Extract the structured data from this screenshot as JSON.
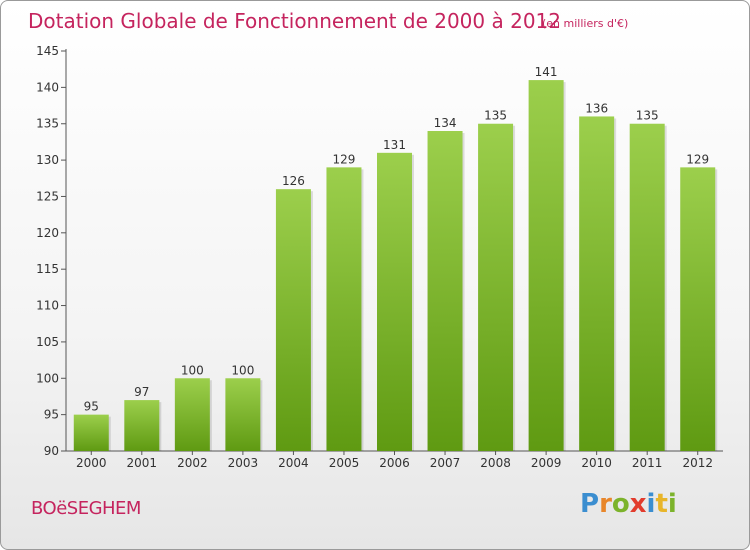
{
  "header": {
    "title": "Dotation Globale de Fonctionnement de 2000 à 2012",
    "subtitle": "(en milliers d'€)"
  },
  "footer": {
    "place": "BOëSEGHEM",
    "logo_letters": [
      {
        "ch": "P",
        "color": "#3b8ed0"
      },
      {
        "ch": "r",
        "color": "#e8862a"
      },
      {
        "ch": "o",
        "color": "#7cb32b"
      },
      {
        "ch": "x",
        "color": "#e23c2d"
      },
      {
        "ch": "i",
        "color": "#3b8ed0"
      },
      {
        "ch": "t",
        "color": "#e8b52a"
      },
      {
        "ch": "i",
        "color": "#7cb32b"
      }
    ]
  },
  "chart_data": {
    "type": "bar",
    "categories": [
      "2000",
      "2001",
      "2002",
      "2003",
      "2004",
      "2005",
      "2006",
      "2007",
      "2008",
      "2009",
      "2010",
      "2011",
      "2012"
    ],
    "values": [
      95,
      97,
      100,
      100,
      126,
      129,
      131,
      134,
      135,
      141,
      136,
      135,
      129
    ],
    "ylim": [
      90,
      145
    ],
    "yticks": [
      90,
      95,
      100,
      105,
      110,
      115,
      120,
      125,
      130,
      135,
      140,
      145
    ],
    "grid": false,
    "bar_color_top": "#9ccf4c",
    "bar_color_bottom": "#5f9a12",
    "label_color": "#333333",
    "axis_color": "#555555"
  }
}
